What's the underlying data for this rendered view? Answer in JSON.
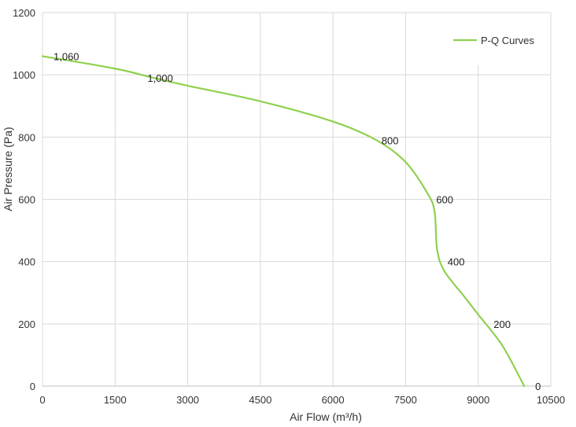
{
  "chart_data": {
    "type": "line",
    "xlabel": "Air Flow  (m³/h)",
    "ylabel": "Air Pressure  (Pa)",
    "xlim": [
      0,
      10500
    ],
    "ylim": [
      0,
      1200
    ],
    "x_ticks": [
      "0",
      "1500",
      "3000",
      "4500",
      "6000",
      "7500",
      "9000",
      "10500"
    ],
    "y_ticks": [
      "0",
      "200",
      "400",
      "600",
      "800",
      "1000",
      "1200"
    ],
    "grid": true,
    "legend_position": "top-right",
    "series": [
      {
        "name": "P-Q Curves",
        "color": "#8fd14f",
        "x": [
          0,
          1500,
          2300,
          3000,
          4500,
          6000,
          6900,
          7500,
          7950,
          8100,
          8150,
          8300,
          8700,
          9000,
          9500,
          9950
        ],
        "y": [
          1060,
          1020,
          990,
          965,
          915,
          850,
          790,
          720,
          620,
          560,
          440,
          370,
          290,
          230,
          130,
          0
        ]
      }
    ],
    "data_labels": [
      {
        "x": 0,
        "y": 1060,
        "text": "1,060"
      },
      {
        "x": 2200,
        "y": 990,
        "text": "1,000"
      },
      {
        "x": 7100,
        "y": 790,
        "text": "800"
      },
      {
        "x": 8100,
        "y": 600,
        "text": "600"
      },
      {
        "x": 8400,
        "y": 400,
        "text": "400"
      },
      {
        "x": 9350,
        "y": 200,
        "text": "200"
      },
      {
        "x": 9950,
        "y": 0,
        "text": "0"
      }
    ]
  }
}
